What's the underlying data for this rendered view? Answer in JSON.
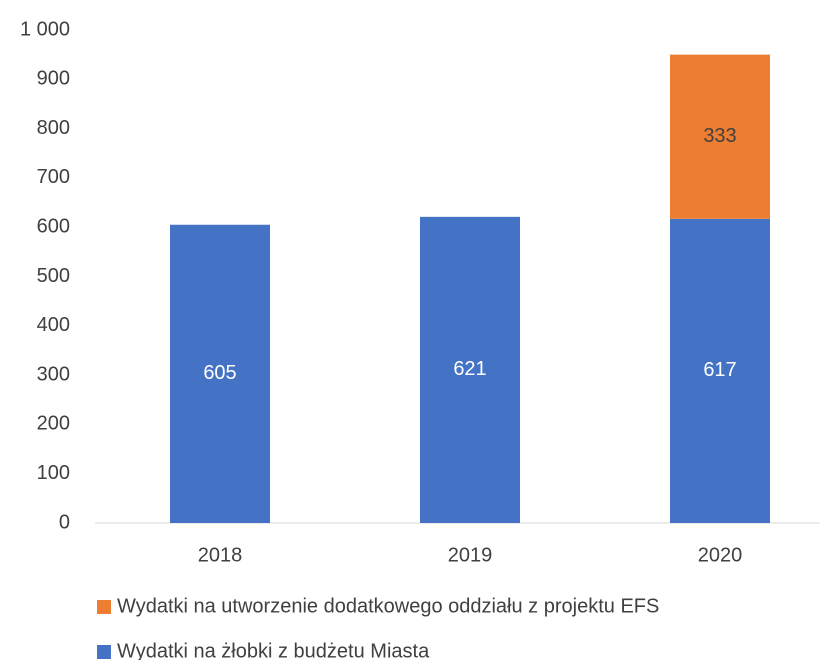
{
  "chart_data": {
    "type": "stacked_bar",
    "categories": [
      "2018",
      "2019",
      "2020"
    ],
    "series": [
      {
        "name": "Wydatki na żłobki z budżetu Miasta",
        "color": "#4472c4",
        "values": [
          605,
          621,
          617
        ]
      },
      {
        "name": "Wydatki na utworzenie dodatkowego oddziału z projektu EFS",
        "color": "#ed7d31",
        "values": [
          null,
          null,
          333
        ]
      }
    ],
    "ylim": [
      0,
      1000
    ],
    "yticks": [
      0,
      100,
      200,
      300,
      400,
      500,
      600,
      700,
      800,
      900,
      {
        "value": 1000,
        "label": "1 000"
      }
    ],
    "grid": false,
    "legend": "bottom"
  }
}
